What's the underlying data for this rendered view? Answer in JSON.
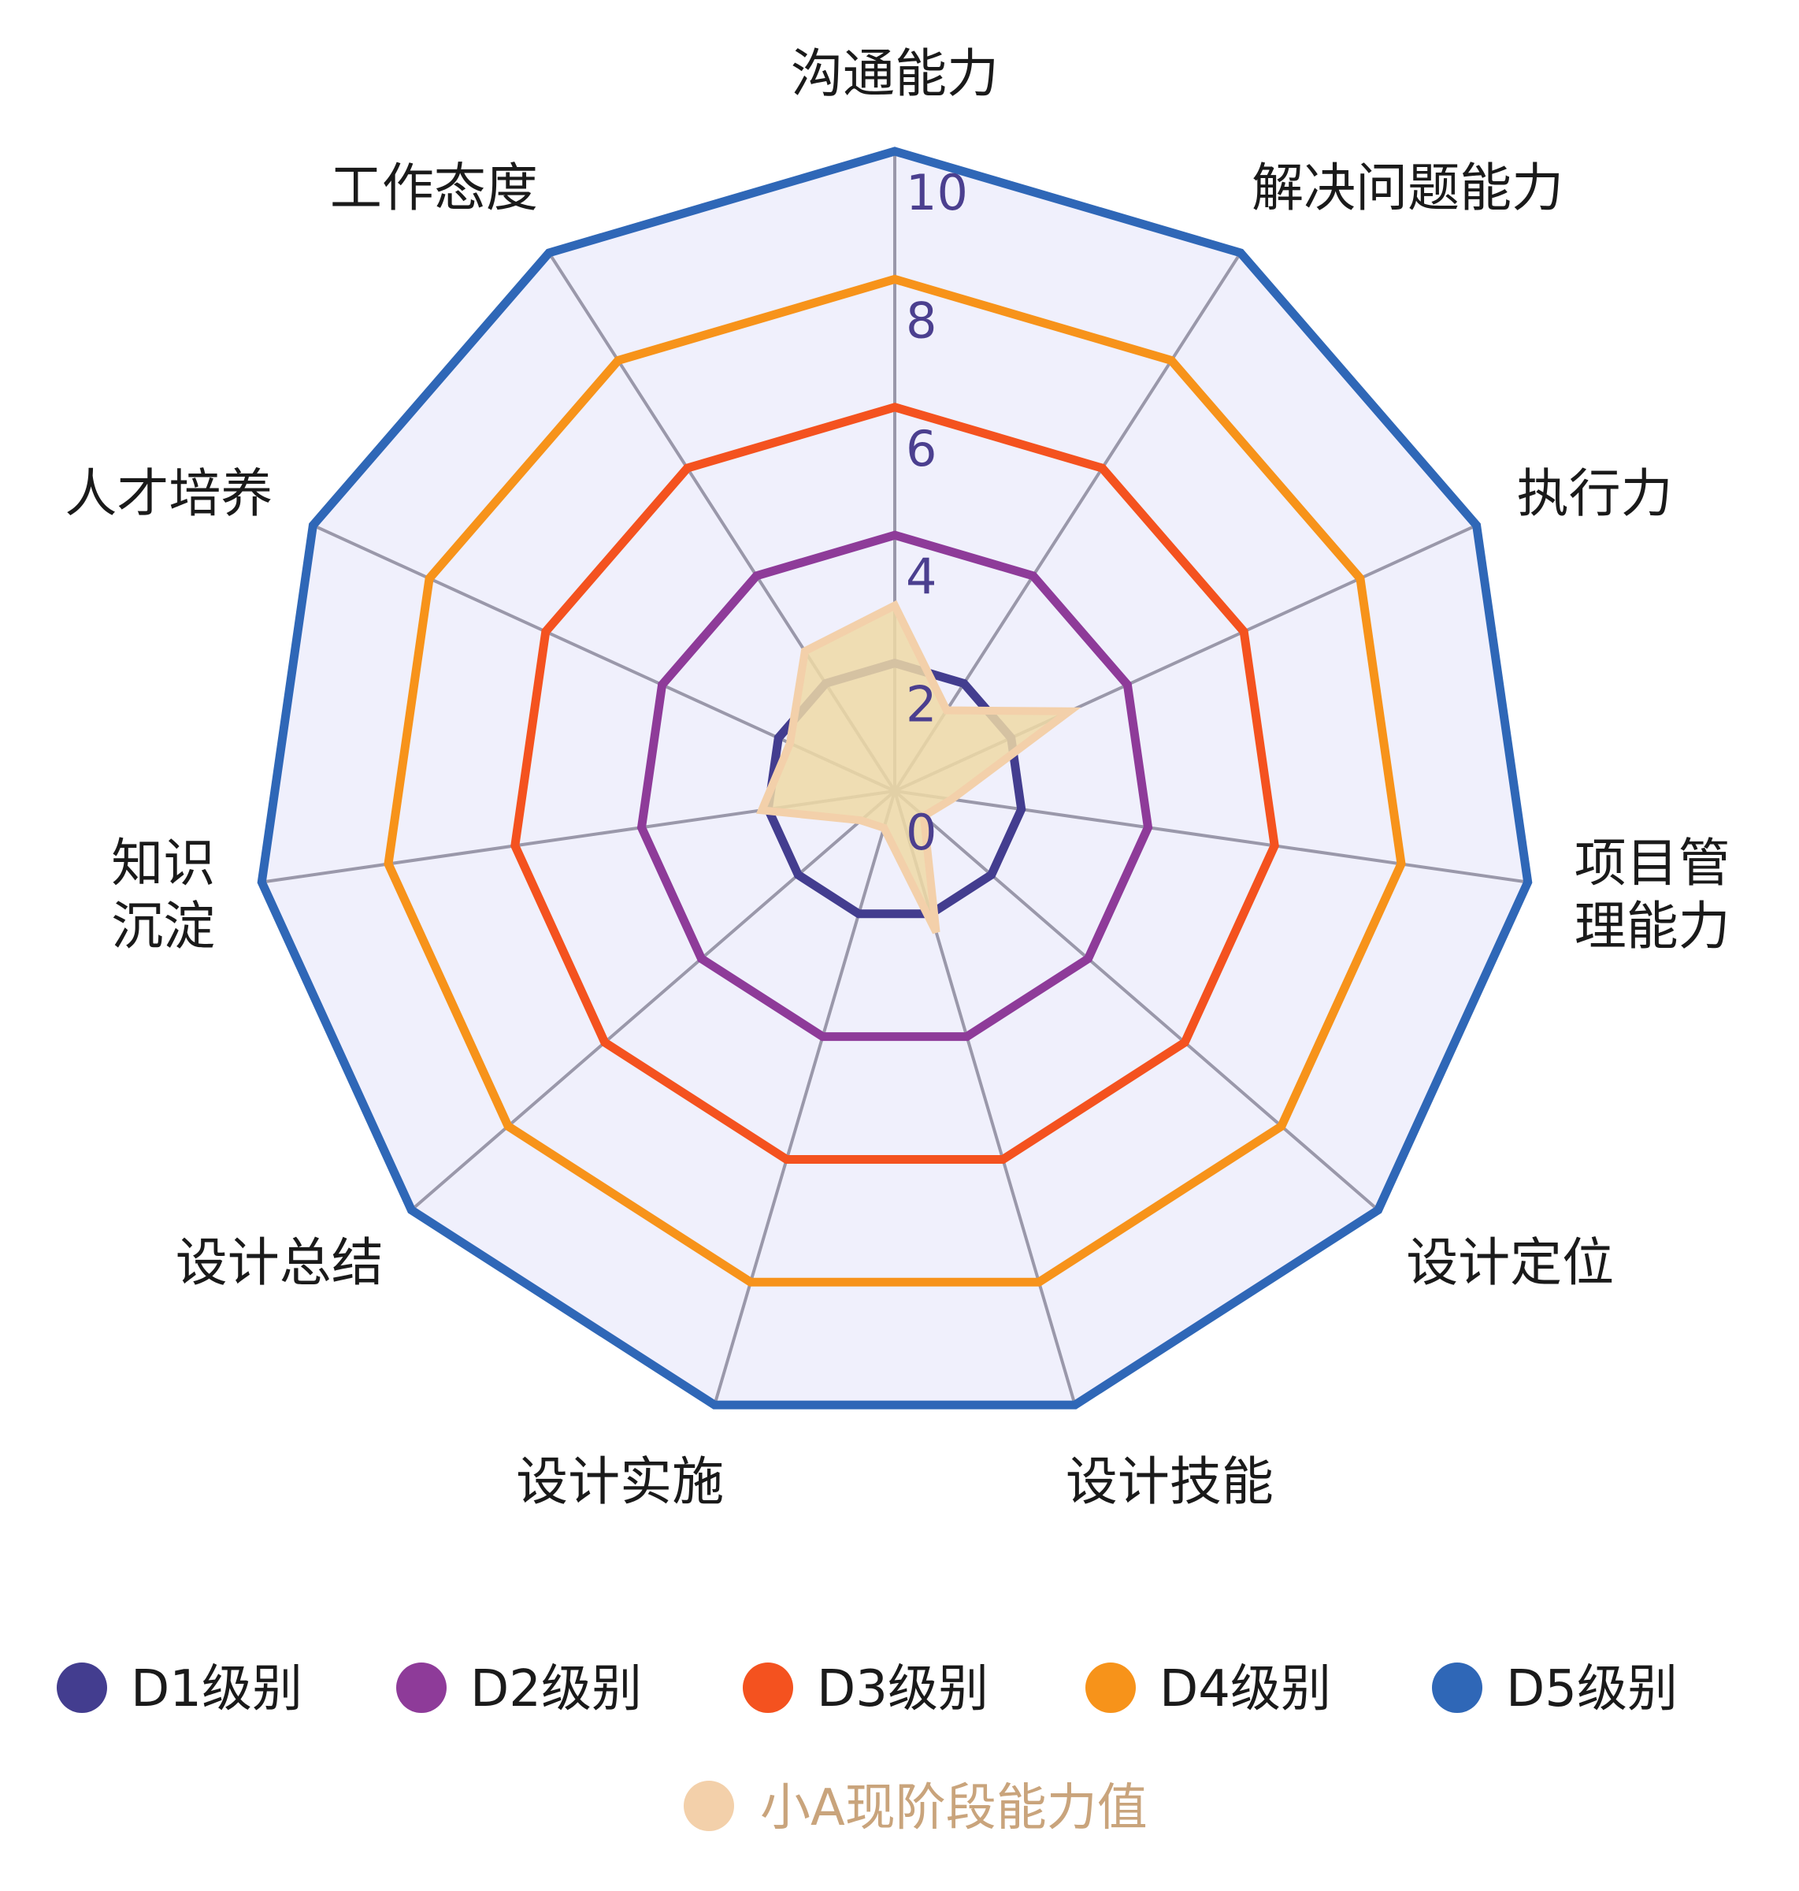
{
  "chart_data": {
    "type": "radar",
    "title": "",
    "axes": [
      {
        "label_lines": [
          "沟通能力"
        ]
      },
      {
        "label_lines": [
          "解决问题能力"
        ]
      },
      {
        "label_lines": [
          "执行力"
        ]
      },
      {
        "label_lines": [
          "项目管",
          "理能力"
        ]
      },
      {
        "label_lines": [
          "设计定位"
        ]
      },
      {
        "label_lines": [
          "设计技能"
        ]
      },
      {
        "label_lines": [
          "设计实施"
        ]
      },
      {
        "label_lines": [
          "设计总结"
        ]
      },
      {
        "label_lines": [
          "知识",
          "沉淀"
        ]
      },
      {
        "label_lines": [
          "人才培养"
        ]
      },
      {
        "label_lines": [
          "工作态度"
        ]
      }
    ],
    "range": [
      0,
      10
    ],
    "ticks": [
      "0",
      "2",
      "4",
      "6",
      "8",
      "10"
    ],
    "tick_color": "#4b3f8f",
    "grid": true,
    "grid_fill": "#f0f0fc",
    "spoke_color": "#9a98aa",
    "legend_position": "bottom",
    "series": [
      {
        "name": "D1级别",
        "color": "#433d8f",
        "fill": "none",
        "values": [
          2,
          2,
          2,
          2,
          2,
          2,
          2,
          2,
          2,
          2,
          2
        ]
      },
      {
        "name": "D2级别",
        "color": "#8e3b99",
        "fill": "none",
        "values": [
          4,
          4,
          4,
          4,
          4,
          4,
          4,
          4,
          4,
          4,
          4
        ]
      },
      {
        "name": "D3级别",
        "color": "#f4521f",
        "fill": "none",
        "values": [
          6,
          6,
          6,
          6,
          6,
          6,
          6,
          6,
          6,
          6,
          6
        ]
      },
      {
        "name": "D4级别",
        "color": "#f7931a",
        "fill": "none",
        "values": [
          8,
          8,
          8,
          8,
          8,
          8,
          8,
          8,
          8,
          8,
          8
        ]
      },
      {
        "name": "D5级别",
        "color": "#2f67b7",
        "fill": "none",
        "values": [
          10,
          10,
          10,
          10,
          10,
          10,
          10,
          10,
          10,
          10,
          10
        ]
      },
      {
        "name": "小A现阶段能力值",
        "color": "#f3d0aa",
        "fill": "#efd9a6",
        "text_color": "#c9a47c",
        "values": [
          2.9,
          1.5,
          3.0,
          0.9,
          0.6,
          2.3,
          0.6,
          0.7,
          2.1,
          1.8,
          2.6
        ]
      }
    ]
  }
}
